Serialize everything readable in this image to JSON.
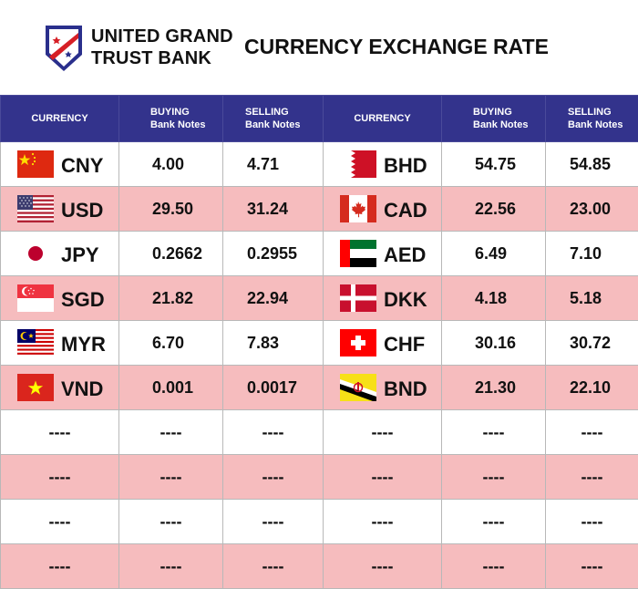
{
  "bank": {
    "name_line1": "UNITED GRAND",
    "name_line2": "TRUST BANK"
  },
  "title": "CURRENCY EXCHANGE RATE",
  "columns": {
    "currency": "CURRENCY",
    "buying_top": "BUYING",
    "buying_bottom": "Bank Notes",
    "selling_top": "SELLING",
    "selling_bottom": "Bank Notes"
  },
  "rows": [
    {
      "left": {
        "flag": "china-flag",
        "code": "CNY",
        "buy": "4.00",
        "sell": "4.71"
      },
      "right": {
        "flag": "bahrain-flag",
        "code": "BHD",
        "buy": "54.75",
        "sell": "54.85"
      }
    },
    {
      "left": {
        "flag": "usa-flag",
        "code": "USD",
        "buy": "29.50",
        "sell": "31.24"
      },
      "right": {
        "flag": "canada-flag",
        "code": "CAD",
        "buy": "22.56",
        "sell": "23.00"
      }
    },
    {
      "left": {
        "flag": "japan-flag",
        "code": "JPY",
        "buy": "0.2662",
        "sell": "0.2955"
      },
      "right": {
        "flag": "uae-flag",
        "code": "AED",
        "buy": "6.49",
        "sell": "7.10"
      }
    },
    {
      "left": {
        "flag": "singapore-flag",
        "code": "SGD",
        "buy": "21.82",
        "sell": "22.94"
      },
      "right": {
        "flag": "denmark-flag",
        "code": "DKK",
        "buy": "4.18",
        "sell": "5.18"
      }
    },
    {
      "left": {
        "flag": "malaysia-flag",
        "code": "MYR",
        "buy": "6.70",
        "sell": "7.83"
      },
      "right": {
        "flag": "switzerland-flag",
        "code": "CHF",
        "buy": "30.16",
        "sell": "30.72"
      }
    },
    {
      "left": {
        "flag": "vietnam-flag",
        "code": "VND",
        "buy": "0.001",
        "sell": "0.0017"
      },
      "right": {
        "flag": "brunei-flag",
        "code": "BND",
        "buy": "21.30",
        "sell": "22.10"
      }
    }
  ],
  "empty_placeholder": "----",
  "colors": {
    "header_bg": "#33338c",
    "row_alt_bg": "#f6bcbe",
    "logo_blue": "#2a2f8c",
    "logo_red": "#d61f26"
  }
}
